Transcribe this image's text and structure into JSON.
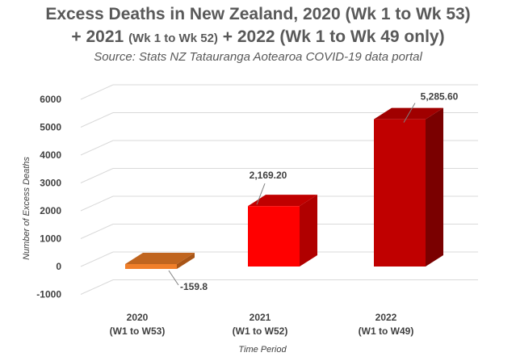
{
  "chart_data": {
    "type": "bar",
    "title_line1": "Excess Deaths in New Zealand, 2020 (Wk 1 to Wk 53)",
    "title_line2_part1": "+ 2021 ",
    "title_line2_part2": "(Wk 1 to Wk 52)",
    "title_line2_part3": " + 2022 (Wk 1 to Wk 49 only)",
    "subtitle": "Source: Stats NZ Tatauranga Aotearoa COVID-19 data portal",
    "categories": [
      {
        "year": "2020",
        "range": "(W1 to W53)"
      },
      {
        "year": "2021",
        "range": "(W1 to W52)"
      },
      {
        "year": "2022",
        "range": "(W1 to W49)"
      }
    ],
    "values": [
      -159.8,
      2169.2,
      5285.6
    ],
    "data_labels": [
      "-159.8",
      "2,169.20",
      "5,285.60"
    ],
    "colors": {
      "front": [
        "#f07f2a",
        "#ff0000",
        "#c00000"
      ],
      "top": [
        "#c0651f",
        "#c00000",
        "#a00000"
      ],
      "side": [
        "#a85517",
        "#b00000",
        "#7a0000"
      ],
      "grid": "#d9d9d9",
      "text": "#404040"
    },
    "xlabel": "Time Period",
    "ylabel": "Number of Excess Deaths",
    "ylim": [
      -1000,
      6000
    ],
    "yticks": [
      -1000,
      0,
      1000,
      2000,
      3000,
      4000,
      5000,
      6000
    ]
  }
}
